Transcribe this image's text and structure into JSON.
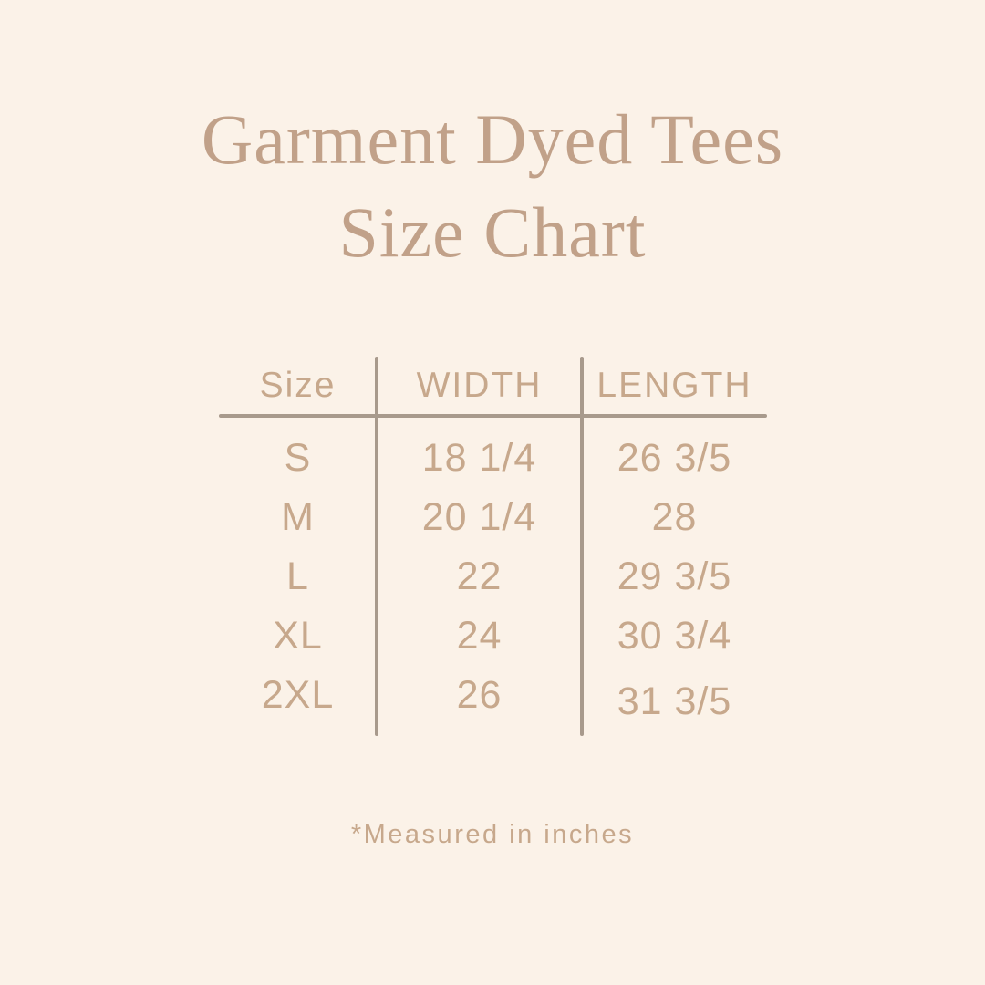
{
  "colors": {
    "background": "#fbf2e8",
    "title_text": "#c1a189",
    "table_text": "#c7a88c",
    "divider_line": "#a89a8c"
  },
  "title": {
    "line1": "Garment Dyed Tees",
    "line2": "Size Chart"
  },
  "chart_data": {
    "type": "table",
    "title": "Garment Dyed Tees Size Chart",
    "columns": [
      "Size",
      "WIDTH",
      "LENGTH"
    ],
    "rows": [
      [
        "S",
        "18 1/4",
        "26 3/5"
      ],
      [
        "M",
        "20 1/4",
        "28"
      ],
      [
        "L",
        "22",
        "29 3/5"
      ],
      [
        "XL",
        "24",
        "30 3/4"
      ],
      [
        "2XL",
        "26",
        "31 3/5"
      ]
    ],
    "units": "inches",
    "footnote": "*Measured in inches",
    "layout": "3-column centered table, vertical dividers between columns, horizontal rule under header"
  }
}
